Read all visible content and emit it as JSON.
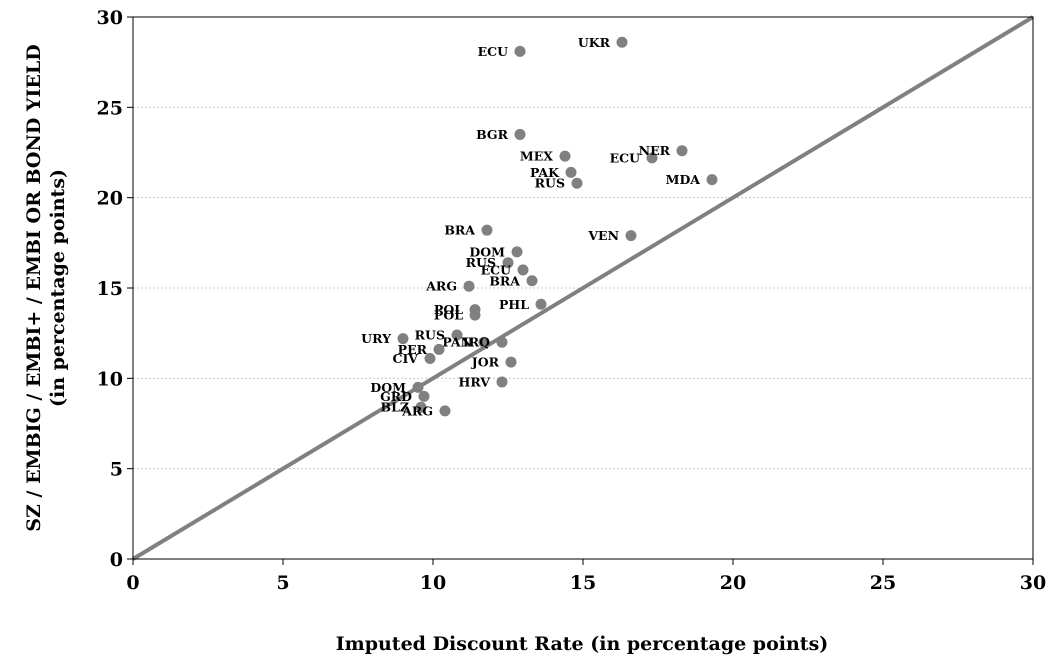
{
  "chart_data": {
    "type": "scatter",
    "xlabel": "Imputed Discount Rate (in percentage points)",
    "ylabel_lines": [
      "SZ / EMBIG / EMBI+ / EMBI OR BOND YIELD",
      "(in percentage points)"
    ],
    "xlim": [
      0,
      30
    ],
    "ylim": [
      0,
      30
    ],
    "x_ticks": [
      0,
      5,
      10,
      15,
      20,
      25,
      30
    ],
    "y_ticks": [
      0,
      5,
      10,
      15,
      20,
      25,
      30
    ],
    "grid": "horizontal",
    "reference_line": {
      "from": [
        0,
        0
      ],
      "to": [
        30,
        30
      ]
    },
    "colors": {
      "marker": "#808080",
      "line": "#808080",
      "grid": "#c8c8c8",
      "axis": "#000000"
    },
    "points": [
      {
        "label": "UKR",
        "x": 16.3,
        "y": 28.6
      },
      {
        "label": "ECU",
        "x": 12.9,
        "y": 28.1
      },
      {
        "label": "BGR",
        "x": 12.9,
        "y": 23.5
      },
      {
        "label": "MEX",
        "x": 14.4,
        "y": 22.3
      },
      {
        "label": "NER",
        "x": 18.3,
        "y": 22.6
      },
      {
        "label": "ECU",
        "x": 17.3,
        "y": 22.2
      },
      {
        "label": "PAK",
        "x": 14.6,
        "y": 21.4
      },
      {
        "label": "RUS",
        "x": 14.8,
        "y": 20.8
      },
      {
        "label": "MDA",
        "x": 19.3,
        "y": 21.0
      },
      {
        "label": "BRA",
        "x": 11.8,
        "y": 18.2
      },
      {
        "label": "VEN",
        "x": 16.6,
        "y": 17.9
      },
      {
        "label": "DOM",
        "x": 12.8,
        "y": 17.0
      },
      {
        "label": "RUS",
        "x": 12.5,
        "y": 16.4
      },
      {
        "label": "ECU",
        "x": 13.0,
        "y": 16.0
      },
      {
        "label": "BRA",
        "x": 13.3,
        "y": 15.4
      },
      {
        "label": "ARG",
        "x": 11.2,
        "y": 15.1
      },
      {
        "label": "PHL",
        "x": 13.6,
        "y": 14.1
      },
      {
        "label": "POL",
        "x": 11.4,
        "y": 13.8
      },
      {
        "label": "POL",
        "x": 11.4,
        "y": 13.5
      },
      {
        "label": "URY",
        "x": 9.0,
        "y": 12.2
      },
      {
        "label": "RUS",
        "x": 10.8,
        "y": 12.4
      },
      {
        "label": "PAN",
        "x": 11.7,
        "y": 12.0
      },
      {
        "label": "IRQ",
        "x": 12.3,
        "y": 12.0
      },
      {
        "label": "PER",
        "x": 10.2,
        "y": 11.6
      },
      {
        "label": "CIV",
        "x": 9.9,
        "y": 11.1
      },
      {
        "label": "JOR",
        "x": 12.6,
        "y": 10.9
      },
      {
        "label": "HRV",
        "x": 12.3,
        "y": 9.8
      },
      {
        "label": "DOM",
        "x": 9.5,
        "y": 9.5
      },
      {
        "label": "GRD",
        "x": 9.7,
        "y": 9.0
      },
      {
        "label": "BLZ",
        "x": 9.6,
        "y": 8.4
      },
      {
        "label": "ARG",
        "x": 10.4,
        "y": 8.2
      }
    ]
  }
}
